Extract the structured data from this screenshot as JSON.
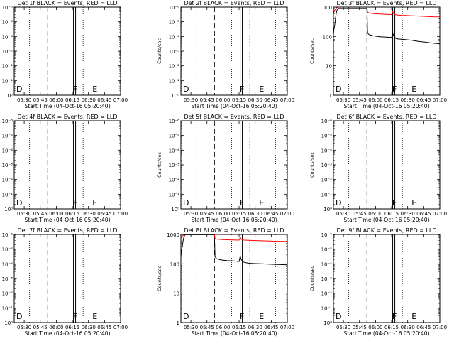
{
  "x_tick_labels": [
    "05:30",
    "05:45",
    "06:00",
    "06:15",
    "06:30",
    "06:45",
    "07:00"
  ],
  "x_axis_label": "Start Time (04-Oct-16 05:20:40)",
  "y_axis_label": "Counts/sec",
  "series_colors": {
    "events": "#000000",
    "lld": "#ff0000"
  },
  "chart_data": [
    {
      "type": "line",
      "title": "Det 1f BLACK = Events, RED = LLD",
      "xlim": [
        "05:20:40",
        "07:00:00"
      ],
      "ylim": [
        1,
        1e-08
      ],
      "yscale": "log",
      "ytick_labels": [
        "10⁰",
        "10⁻¹",
        "10⁻²",
        "10⁻³",
        "10⁻⁴",
        "10⁻⁵",
        "10⁻⁶"
      ],
      "dashed_lines": [
        "05:52:00"
      ],
      "solid_lines": [
        "06:16:00",
        "06:18:00"
      ],
      "dotted_lines": [
        "05:35:00",
        "06:08:00",
        "06:25:00",
        "06:49:00"
      ],
      "markers": [
        {
          "label": "D",
          "x": "05:22:00"
        },
        {
          "label": "F",
          "x": "06:15:00"
        },
        {
          "label": "E",
          "x": "06:33:00"
        }
      ],
      "series": []
    },
    {
      "type": "line",
      "title": "Det 2f BLACK = Events, RED = LLD",
      "xlim": [
        "05:20:40",
        "07:00:00"
      ],
      "ylim": [
        1,
        1e-08
      ],
      "yscale": "log",
      "ytick_labels": [
        "10⁰",
        "10⁻¹",
        "10⁻²",
        "10⁻³",
        "10⁻⁴",
        "10⁻⁵",
        "10⁻⁶"
      ],
      "dashed_lines": [
        "05:52:00"
      ],
      "solid_lines": [
        "06:16:00",
        "06:18:00"
      ],
      "dotted_lines": [
        "05:35:00",
        "06:08:00",
        "06:25:00",
        "06:49:00"
      ],
      "markers": [
        {
          "label": "D",
          "x": "05:22:00"
        },
        {
          "label": "F",
          "x": "06:15:00"
        },
        {
          "label": "E",
          "x": "06:33:00"
        }
      ],
      "series": []
    },
    {
      "type": "line",
      "title": "Det 3f BLACK = Events, RED = LLD",
      "xlim": [
        "05:20:40",
        "07:00:00"
      ],
      "ylim": [
        1,
        1000
      ],
      "yscale": "log",
      "ytick_labels": [
        "1",
        "10",
        "100",
        "1000"
      ],
      "dashed_lines": [
        "05:52:00"
      ],
      "solid_lines": [
        "06:16:00",
        "06:18:00"
      ],
      "dotted_lines": [
        "05:35:00",
        "06:08:00",
        "06:25:00",
        "06:49:00"
      ],
      "markers": [
        {
          "label": "D",
          "x": "05:22:00"
        },
        {
          "label": "F",
          "x": "06:15:00"
        },
        {
          "label": "E",
          "x": "06:33:00"
        }
      ],
      "series": [
        {
          "color": "#000000",
          "x": [
            "05:20:40",
            "05:21:00",
            "05:22:00",
            "05:22:40",
            "05:23:20",
            "05:24:00",
            "05:24:30",
            "05:25:00",
            "05:52:00",
            "05:52:30",
            "05:54:00",
            "05:58:00",
            "06:04:00",
            "06:10:00",
            "06:15:00",
            "06:16:00",
            "06:17:00",
            "06:18:00",
            "06:19:00",
            "06:21:00",
            "06:24:00",
            "06:28:00",
            "06:34:00",
            "06:40:00",
            "06:46:00",
            "06:52:00",
            "06:58:00",
            "07:00:00"
          ],
          "y": [
            110,
            160,
            260,
            430,
            620,
            780,
            870,
            900,
            900,
            130,
            115,
            105,
            98,
            95,
            92,
            130,
            105,
            95,
            85,
            82,
            80,
            78,
            74,
            68,
            64,
            60,
            57,
            56
          ]
        },
        {
          "color": "#ff0000",
          "x": [
            "05:20:40",
            "05:22:00",
            "05:23:30",
            "05:24:30",
            "05:25:00",
            "05:52:00",
            "05:52:30",
            "05:55:00",
            "06:00:00",
            "06:06:00",
            "06:12:00",
            "06:15:00",
            "06:16:00",
            "06:17:00",
            "06:18:00",
            "06:20:00",
            "06:24:00",
            "06:30:00",
            "06:36:00",
            "06:42:00",
            "06:48:00",
            "06:54:00",
            "07:00:00"
          ],
          "y": [
            620,
            800,
            950,
            1000,
            1000,
            1000,
            660,
            620,
            590,
            575,
            560,
            555,
            700,
            600,
            560,
            540,
            525,
            515,
            500,
            490,
            480,
            470,
            465
          ]
        }
      ]
    },
    {
      "type": "line",
      "title": "Det 4f BLACK = Events, RED = LLD",
      "xlim": [
        "05:20:40",
        "07:00:00"
      ],
      "ylim": [
        1,
        1e-08
      ],
      "yscale": "log",
      "ytick_labels": [
        "10⁰",
        "10⁻¹",
        "10⁻²",
        "10⁻³",
        "10⁻⁴",
        "10⁻⁵",
        "10⁻⁶"
      ],
      "dashed_lines": [
        "05:52:00"
      ],
      "solid_lines": [
        "06:16:00",
        "06:18:00"
      ],
      "dotted_lines": [
        "05:35:00",
        "06:08:00",
        "06:25:00",
        "06:49:00"
      ],
      "markers": [
        {
          "label": "D",
          "x": "05:22:00"
        },
        {
          "label": "F",
          "x": "06:15:00"
        },
        {
          "label": "E",
          "x": "06:33:00"
        }
      ],
      "series": []
    },
    {
      "type": "line",
      "title": "Det 5f BLACK = Events, RED = LLD",
      "xlim": [
        "05:20:40",
        "07:00:00"
      ],
      "ylim": [
        1,
        1e-08
      ],
      "yscale": "log",
      "ytick_labels": [
        "10⁰",
        "10⁻¹",
        "10⁻²",
        "10⁻³",
        "10⁻⁴",
        "10⁻⁵",
        "10⁻⁶"
      ],
      "dashed_lines": [
        "05:52:00"
      ],
      "solid_lines": [
        "06:16:00",
        "06:18:00"
      ],
      "dotted_lines": [
        "05:35:00",
        "06:08:00",
        "06:25:00",
        "06:49:00"
      ],
      "markers": [
        {
          "label": "D",
          "x": "05:22:00"
        },
        {
          "label": "F",
          "x": "06:15:00"
        },
        {
          "label": "E",
          "x": "06:33:00"
        }
      ],
      "series": []
    },
    {
      "type": "line",
      "title": "Det 6f BLACK = Events, RED = LLD",
      "xlim": [
        "05:20:40",
        "07:00:00"
      ],
      "ylim": [
        1,
        1e-08
      ],
      "yscale": "log",
      "ytick_labels": [
        "10⁰",
        "10⁻¹",
        "10⁻²",
        "10⁻³",
        "10⁻⁴",
        "10⁻⁵",
        "10⁻⁶"
      ],
      "dashed_lines": [
        "05:52:00"
      ],
      "solid_lines": [
        "06:16:00",
        "06:18:00"
      ],
      "dotted_lines": [
        "05:35:00",
        "06:08:00",
        "06:25:00",
        "06:49:00"
      ],
      "markers": [
        {
          "label": "D",
          "x": "05:22:00"
        },
        {
          "label": "F",
          "x": "06:15:00"
        },
        {
          "label": "E",
          "x": "06:33:00"
        }
      ],
      "series": []
    },
    {
      "type": "line",
      "title": "Det 7f BLACK = Events, RED = LLD",
      "xlim": [
        "05:20:40",
        "07:00:00"
      ],
      "ylim": [
        1,
        1e-08
      ],
      "yscale": "log",
      "ytick_labels": [
        "10⁰",
        "10⁻¹",
        "10⁻²",
        "10⁻³",
        "10⁻⁴",
        "10⁻⁵",
        "10⁻⁶"
      ],
      "dashed_lines": [
        "05:52:00"
      ],
      "solid_lines": [
        "06:16:00",
        "06:18:00"
      ],
      "dotted_lines": [
        "05:35:00",
        "06:08:00",
        "06:25:00",
        "06:49:00"
      ],
      "markers": [
        {
          "label": "D",
          "x": "05:22:00"
        },
        {
          "label": "F",
          "x": "06:15:00"
        },
        {
          "label": "E",
          "x": "06:33:00"
        }
      ],
      "series": []
    },
    {
      "type": "line",
      "title": "Det 8f BLACK = Events, RED = LLD",
      "xlim": [
        "05:20:40",
        "07:00:00"
      ],
      "ylim": [
        1,
        1000
      ],
      "yscale": "log",
      "ytick_labels": [
        "1",
        "10",
        "100",
        "1000"
      ],
      "dashed_lines": [
        "05:52:00"
      ],
      "solid_lines": [
        "06:16:00",
        "06:18:00"
      ],
      "dotted_lines": [
        "05:35:00",
        "06:08:00",
        "06:25:00",
        "06:49:00"
      ],
      "markers": [
        {
          "label": "D",
          "x": "05:22:00"
        },
        {
          "label": "F",
          "x": "06:15:00"
        },
        {
          "label": "E",
          "x": "06:33:00"
        }
      ],
      "series": [
        {
          "color": "#000000",
          "x": [
            "05:20:40",
            "05:21:00",
            "05:22:00",
            "05:22:40",
            "05:23:20",
            "05:24:00",
            "05:24:30",
            "05:25:00",
            "05:52:00",
            "05:52:30",
            "05:54:00",
            "05:58:00",
            "06:04:00",
            "06:10:00",
            "06:15:00",
            "06:16:00",
            "06:17:00",
            "06:18:00",
            "06:19:00",
            "06:21:00",
            "06:24:00",
            "06:30:00",
            "06:36:00",
            "06:42:00",
            "06:48:00",
            "06:54:00",
            "07:00:00"
          ],
          "y": [
            160,
            250,
            390,
            580,
            780,
            900,
            960,
            980,
            980,
            175,
            150,
            135,
            128,
            125,
            120,
            180,
            140,
            125,
            115,
            110,
            105,
            102,
            100,
            98,
            96,
            94,
            92
          ]
        },
        {
          "color": "#ff0000",
          "x": [
            "05:20:40",
            "05:22:00",
            "05:23:30",
            "05:24:30",
            "05:25:00",
            "05:52:00",
            "05:52:30",
            "05:55:00",
            "06:00:00",
            "06:06:00",
            "06:12:00",
            "06:15:00",
            "06:16:00",
            "06:17:00",
            "06:18:00",
            "06:20:00",
            "06:26:00",
            "06:32:00",
            "06:38:00",
            "06:44:00",
            "06:50:00",
            "06:56:00",
            "07:00:00"
          ],
          "y": [
            750,
            880,
            970,
            1000,
            1000,
            1000,
            720,
            690,
            670,
            655,
            645,
            640,
            800,
            690,
            650,
            640,
            625,
            615,
            605,
            595,
            585,
            578,
            575
          ]
        }
      ]
    },
    {
      "type": "line",
      "title": "Det 9f BLACK = Events, RED = LLD",
      "xlim": [
        "05:20:40",
        "07:00:00"
      ],
      "ylim": [
        1,
        1e-08
      ],
      "yscale": "log",
      "ytick_labels": [
        "10⁰",
        "10⁻¹",
        "10⁻²",
        "10⁻³",
        "10⁻⁴",
        "10⁻⁵",
        "10⁻⁶"
      ],
      "dashed_lines": [
        "05:52:00"
      ],
      "solid_lines": [
        "06:16:00",
        "06:18:00"
      ],
      "dotted_lines": [
        "05:35:00",
        "06:08:00",
        "06:25:00",
        "06:49:00"
      ],
      "markers": [
        {
          "label": "D",
          "x": "05:22:00"
        },
        {
          "label": "F",
          "x": "06:15:00"
        },
        {
          "label": "E",
          "x": "06:33:00"
        }
      ],
      "series": []
    }
  ]
}
